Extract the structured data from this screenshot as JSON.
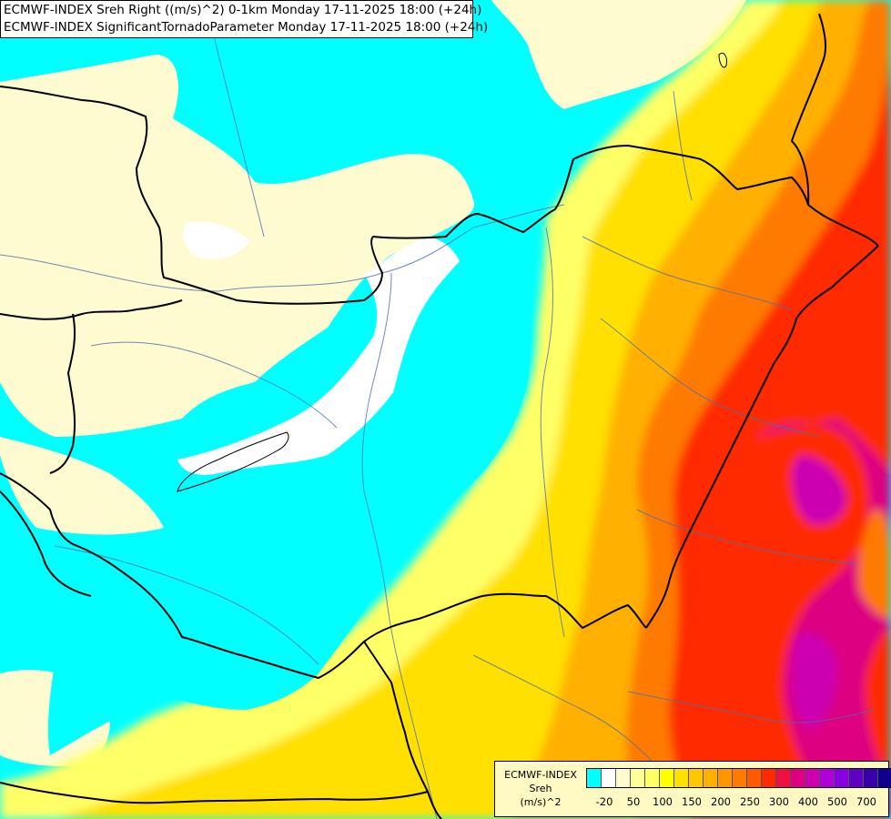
{
  "header": {
    "line1": "ECMWF-INDEX Sreh Right ((m/s)^2) 0-1km Monday 17-11-2025 18:00 (+24h)",
    "line2": "ECMWF-INDEX SignificantTornadoParameter Monday 17-11-2025 18:00 (+24h)"
  },
  "legend": {
    "title_lines": [
      "ECMWF-INDEX",
      "Sreh",
      "(m/s)^2"
    ],
    "colors": [
      "#00ffff",
      "#ffffff",
      "#fffbd0",
      "#ffff9a",
      "#ffff66",
      "#ffff00",
      "#ffe000",
      "#ffc800",
      "#ffb000",
      "#ff9600",
      "#ff7a00",
      "#ff5a00",
      "#ff2a00",
      "#ee1040",
      "#dd0080",
      "#cc00b0",
      "#b000d8",
      "#8800e0",
      "#6000c0",
      "#3800a8",
      "#100090"
    ],
    "ticks": [
      "-20",
      "50",
      "100",
      "150",
      "200",
      "250",
      "300",
      "400",
      "500",
      "700"
    ]
  }
}
